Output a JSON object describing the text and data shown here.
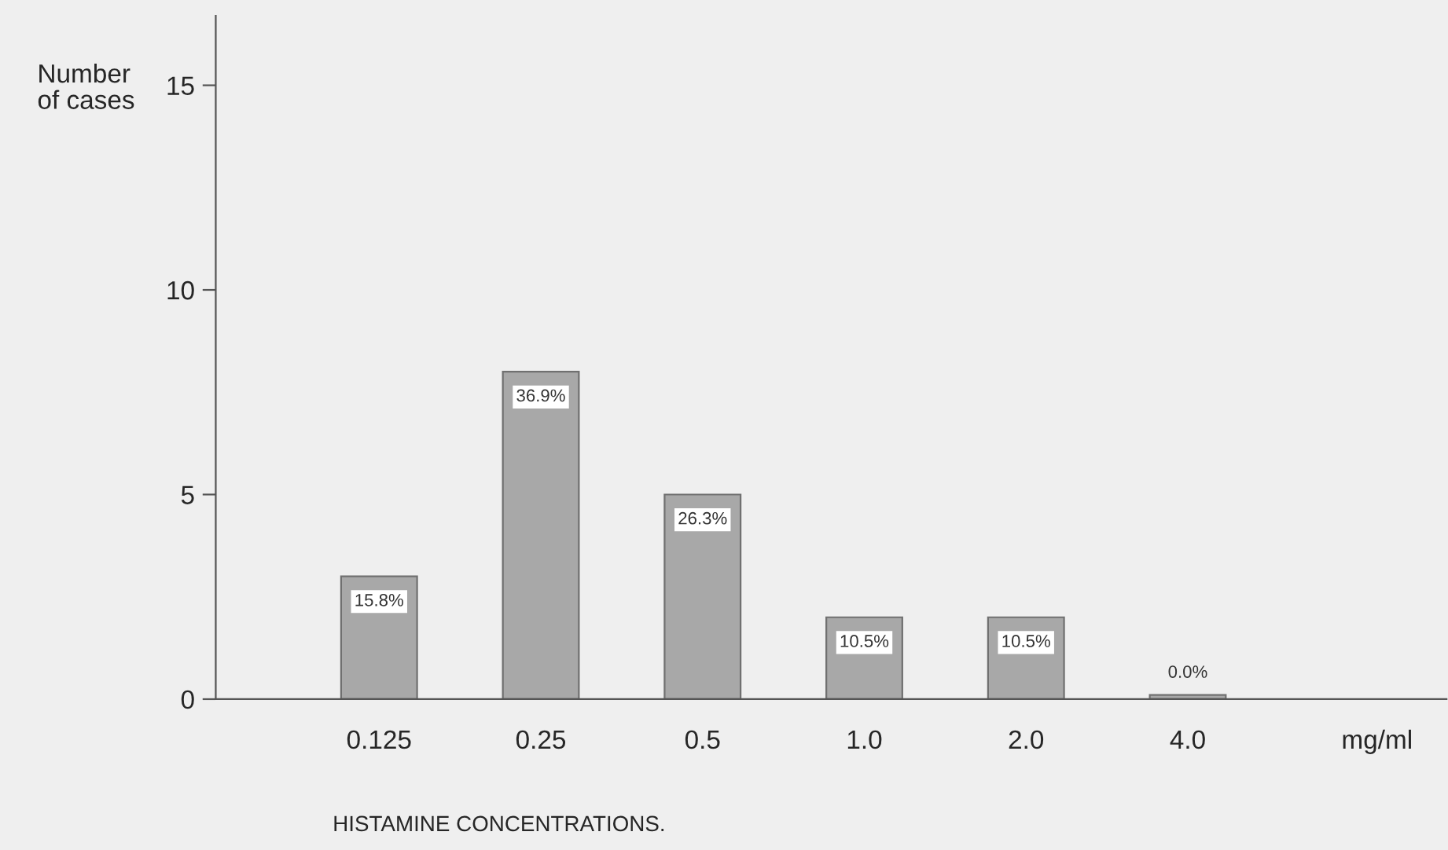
{
  "chart_data": {
    "type": "bar",
    "ylabel": "Number\nof cases",
    "xlabel": "HISTAMINE CONCENTRATIONS.",
    "categories": [
      "0.125",
      "0.25",
      "0.5",
      "1.0",
      "2.0",
      "4.0"
    ],
    "values": [
      3,
      8,
      5,
      2,
      2,
      0.1
    ],
    "color": "#a8a8a8",
    "ylim": [
      0,
      16.7
    ],
    "yticks": [
      0,
      5,
      10,
      15
    ],
    "annotations": [
      {
        "text": "15.8%",
        "x": "0.125",
        "y": 3
      },
      {
        "text": "36.9%",
        "x": "0.25",
        "y": 8
      },
      {
        "text": "26.3%",
        "x": "0.5",
        "y": 5
      },
      {
        "text": "10.5%",
        "x": "1.0",
        "y": 2
      },
      {
        "text": "10.5%",
        "x": "2.0",
        "y": 2
      },
      {
        "text": "0.0%",
        "x": "4.0",
        "y": 0.1
      },
      "mg/ml"
    ],
    "grid": false,
    "legend": false
  }
}
